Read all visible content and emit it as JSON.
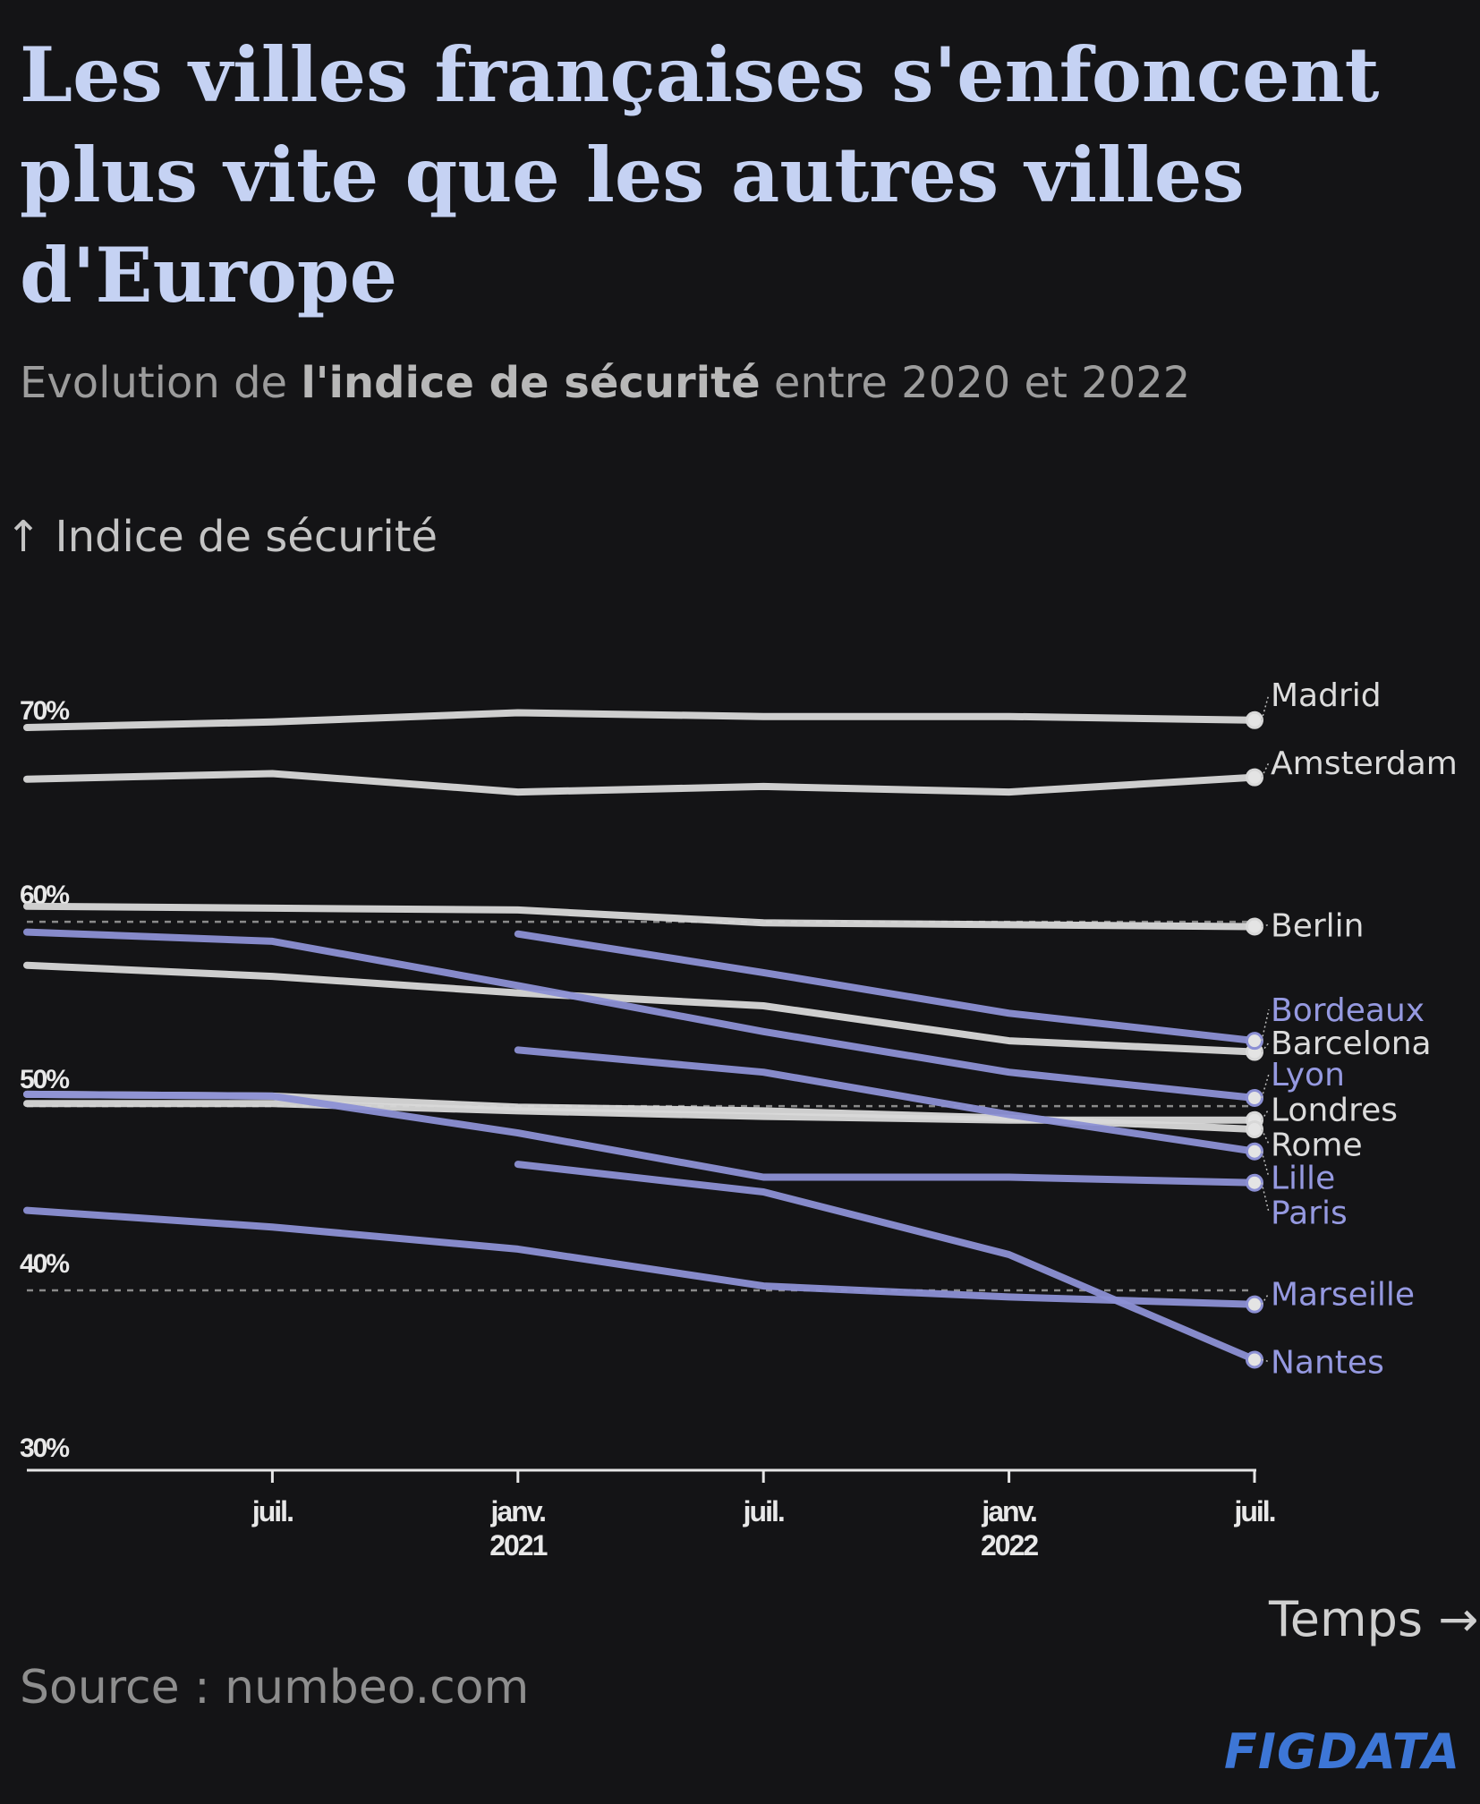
{
  "chart_data": {
    "type": "line",
    "title": "Les villes françaises s'enfoncent plus vite que les autres villes d'Europe",
    "subtitle": {
      "before": "Evolution de ",
      "bold": "l'indice de sécurité",
      "after": " entre 2020 et 2022"
    },
    "ylabel": "↑ Indice de sécurité",
    "xlabel": "Temps →",
    "source": "Source : numbeo.com",
    "brand": "FIGDATA",
    "y_ticks": [
      {
        "value": 70,
        "label": "70%"
      },
      {
        "value": 60,
        "label": "60%"
      },
      {
        "value": 50,
        "label": "50%"
      },
      {
        "value": 40,
        "label": "40%"
      },
      {
        "value": 30,
        "label": "30%"
      }
    ],
    "ylim": [
      30,
      72
    ],
    "grid_dashed_at": [
      60,
      50,
      40
    ],
    "x_dates": [
      "2020-07",
      "2021-01",
      "2021-07",
      "2022-01",
      "2022-07"
    ],
    "x_range": [
      "2020-01",
      "2022-07"
    ],
    "x_ticks": [
      {
        "date": "2020-07",
        "line1": "juil.",
        "line2": ""
      },
      {
        "date": "2021-01",
        "line1": "janv.",
        "line2": "2021"
      },
      {
        "date": "2021-07",
        "line1": "juil.",
        "line2": ""
      },
      {
        "date": "2022-01",
        "line1": "janv.",
        "line2": "2022"
      },
      {
        "date": "2022-07",
        "line1": "juil.",
        "line2": ""
      }
    ],
    "colors": {
      "france": "#8c90d4",
      "other": "#d8d8d8",
      "grid": "#8a8a8a",
      "axis": "#e6e6e6"
    },
    "series": [
      {
        "name": "Madrid",
        "group": "other",
        "label_value": 70.4,
        "points": [
          [
            "2020-01",
            68.6
          ],
          [
            "2020-07",
            68.9
          ],
          [
            "2021-01",
            69.4
          ],
          [
            "2021-07",
            69.2
          ],
          [
            "2022-01",
            69.2
          ],
          [
            "2022-07",
            69.0
          ]
        ]
      },
      {
        "name": "Amsterdam",
        "group": "other",
        "label_value": 66.7,
        "points": [
          [
            "2020-01",
            65.8
          ],
          [
            "2020-07",
            66.1
          ],
          [
            "2021-01",
            65.1
          ],
          [
            "2021-07",
            65.4
          ],
          [
            "2022-01",
            65.1
          ],
          [
            "2022-07",
            65.9
          ]
        ]
      },
      {
        "name": "Berlin",
        "group": "other",
        "label_value": 57.9,
        "points": [
          [
            "2020-01",
            58.9
          ],
          [
            "2020-07",
            58.8
          ],
          [
            "2021-01",
            58.7
          ],
          [
            "2021-07",
            58.0
          ],
          [
            "2022-01",
            57.9
          ],
          [
            "2022-07",
            57.8
          ]
        ]
      },
      {
        "name": "Barcelona",
        "group": "other",
        "label_value": 51.5,
        "points": [
          [
            "2020-01",
            55.7
          ],
          [
            "2020-07",
            55.1
          ],
          [
            "2021-01",
            54.2
          ],
          [
            "2021-07",
            53.5
          ],
          [
            "2022-01",
            51.6
          ],
          [
            "2022-07",
            51.0
          ]
        ]
      },
      {
        "name": "Londres",
        "group": "other",
        "label_value": 47.9,
        "points": [
          [
            "2020-01",
            48.2
          ],
          [
            "2020-07",
            48.2
          ],
          [
            "2021-01",
            47.8
          ],
          [
            "2021-07",
            47.5
          ],
          [
            "2022-01",
            47.3
          ],
          [
            "2022-07",
            47.3
          ]
        ]
      },
      {
        "name": "Rome",
        "group": "other",
        "label_value": 46.0,
        "points": [
          [
            "2020-01",
            48.7
          ],
          [
            "2020-07",
            48.6
          ],
          [
            "2021-01",
            48.0
          ],
          [
            "2021-07",
            47.8
          ],
          [
            "2022-01",
            47.4
          ],
          [
            "2022-07",
            46.8
          ]
        ]
      },
      {
        "name": "Bordeaux",
        "group": "france",
        "label_value": 53.3,
        "points": [
          [
            "2021-01",
            57.4
          ],
          [
            "2021-07",
            55.3
          ],
          [
            "2022-01",
            53.1
          ],
          [
            "2022-07",
            51.6
          ]
        ]
      },
      {
        "name": "Lyon",
        "group": "france",
        "label_value": 49.8,
        "points": [
          [
            "2020-01",
            57.5
          ],
          [
            "2020-07",
            57.0
          ],
          [
            "2021-01",
            54.6
          ],
          [
            "2021-07",
            52.1
          ],
          [
            "2022-01",
            49.9
          ],
          [
            "2022-07",
            48.5
          ]
        ]
      },
      {
        "name": "Lille",
        "group": "france",
        "label_value": 44.2,
        "points": [
          [
            "2021-01",
            51.1
          ],
          [
            "2021-07",
            49.9
          ],
          [
            "2022-01",
            47.6
          ],
          [
            "2022-07",
            45.6
          ]
        ]
      },
      {
        "name": "Paris",
        "group": "france",
        "label_value": 42.3,
        "points": [
          [
            "2020-01",
            48.7
          ],
          [
            "2020-07",
            48.6
          ],
          [
            "2021-01",
            46.6
          ],
          [
            "2021-07",
            44.2
          ],
          [
            "2022-01",
            44.2
          ],
          [
            "2022-07",
            43.9
          ]
        ]
      },
      {
        "name": "Marseille",
        "group": "france",
        "label_value": 37.9,
        "points": [
          [
            "2020-01",
            42.4
          ],
          [
            "2020-07",
            41.5
          ],
          [
            "2021-01",
            40.3
          ],
          [
            "2021-07",
            38.3
          ],
          [
            "2022-01",
            37.7
          ],
          [
            "2022-07",
            37.3
          ]
        ]
      },
      {
        "name": "Nantes",
        "group": "france",
        "label_value": 34.2,
        "points": [
          [
            "2021-01",
            44.9
          ],
          [
            "2021-07",
            43.4
          ],
          [
            "2022-01",
            40.0
          ],
          [
            "2022-07",
            34.3
          ]
        ]
      }
    ]
  }
}
